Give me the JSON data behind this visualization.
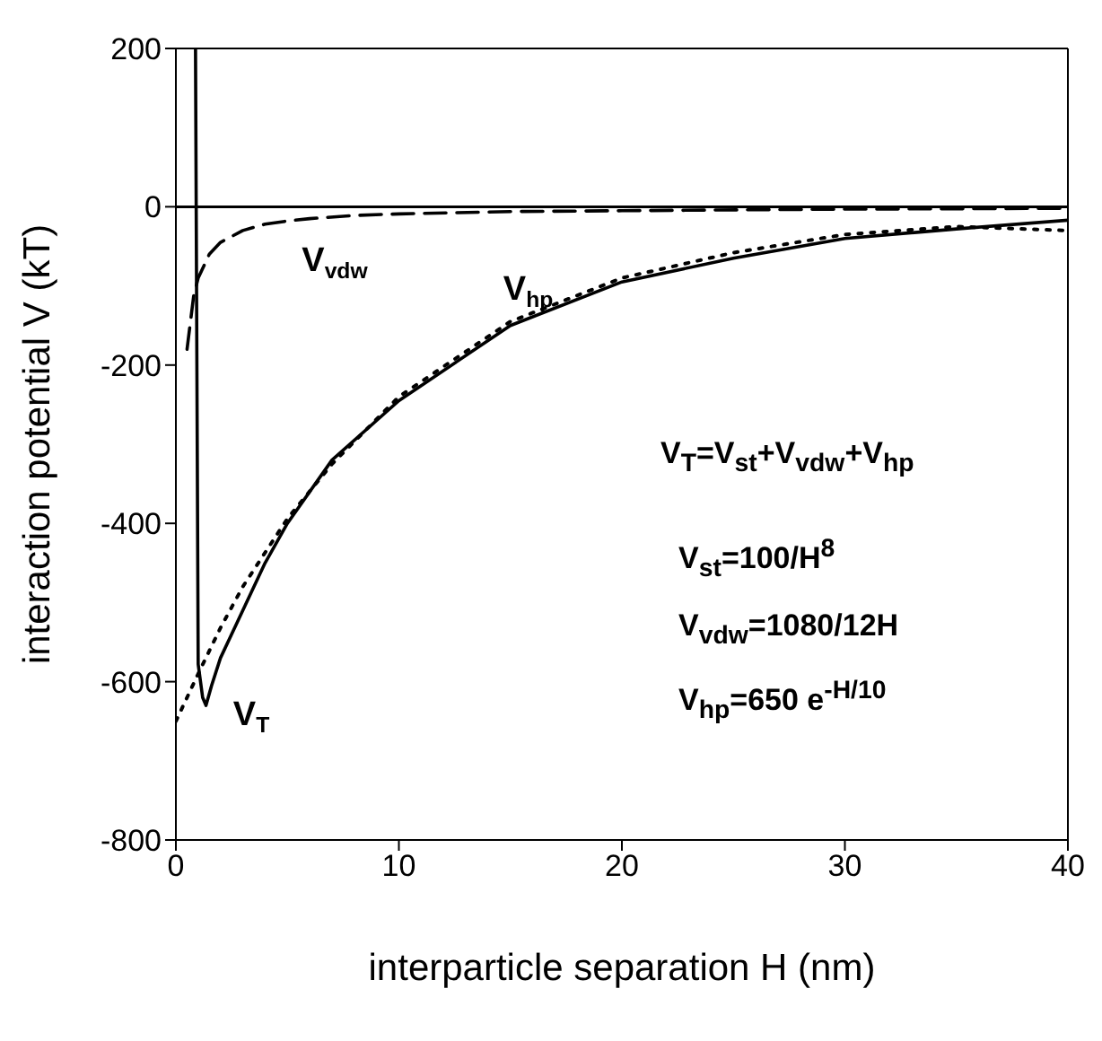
{
  "chart_data": {
    "type": "line",
    "xlabel": "interparticle separation H (nm)",
    "ylabel": "interaction potential V (kT)",
    "xlim": [
      0,
      40
    ],
    "xticks": [
      0,
      10,
      20,
      30,
      40
    ],
    "ylim": [
      -800,
      200
    ],
    "yticks": [
      -800,
      -600,
      -400,
      -200,
      0,
      200
    ],
    "grid": false,
    "legend": false,
    "marker": "none",
    "series": [
      {
        "name": "V$_{vdw}$",
        "color": "#000000",
        "line_style": "dashed",
        "x": [
          0.5,
          0.8,
          1,
          1.5,
          2,
          3,
          4,
          5,
          6,
          8,
          10,
          15,
          20,
          30,
          40
        ],
        "values": [
          -180,
          -112,
          -90,
          -60,
          -45,
          -30,
          -22,
          -18,
          -15,
          -11,
          -9,
          -6,
          -5,
          -3,
          -2
        ]
      },
      {
        "name": "V$_{hp}$",
        "color": "#000000",
        "line_style": "dotted",
        "x": [
          0,
          1,
          2,
          3,
          5,
          7,
          10,
          15,
          20,
          25,
          30,
          35,
          40
        ],
        "values": [
          -650,
          -590,
          -532,
          -480,
          -394,
          -325,
          -240,
          -145,
          -90,
          -58,
          -35,
          -25,
          -30
        ]
      },
      {
        "name": "V$_{T}$",
        "color": "#000000",
        "line_style": "solid",
        "x": [
          0.88,
          1,
          1.2,
          1.35,
          1.6,
          2,
          3,
          4,
          5,
          7,
          10,
          15,
          20,
          25,
          30,
          35,
          40
        ],
        "values": [
          200,
          -578,
          -620,
          -630,
          -605,
          -570,
          -510,
          -450,
          -400,
          -320,
          -245,
          -150,
          -95,
          -65,
          -40,
          -28,
          -17
        ]
      }
    ],
    "ref_lines": [
      {
        "axis": "y",
        "value": 0,
        "color": "#000000",
        "line_style": "solid"
      }
    ],
    "annotations": [
      "V$_{T}$=V$_{st}$+V$_{vdw}$+V$_{hp}$",
      "V$_{st}$=100/H$^{8}$",
      "V$_{vdw}$=1080/12H",
      "V$_{hp}$=650 e$^{-H/10}$"
    ]
  }
}
